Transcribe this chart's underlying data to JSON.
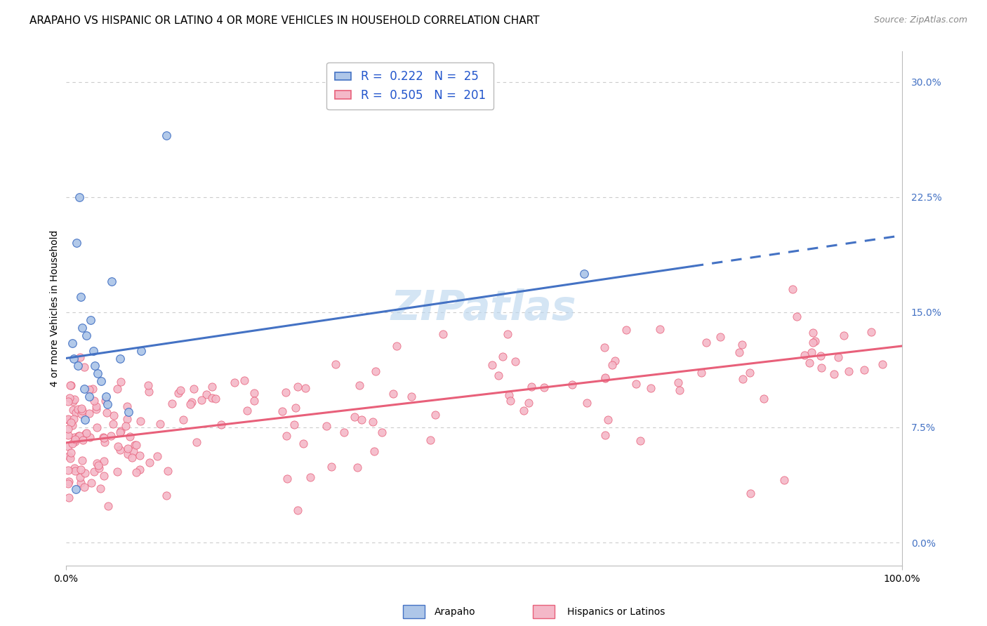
{
  "title": "ARAPAHO VS HISPANIC OR LATINO 4 OR MORE VEHICLES IN HOUSEHOLD CORRELATION CHART",
  "source": "Source: ZipAtlas.com",
  "ylabel": "4 or more Vehicles in Household",
  "xlim": [
    0,
    100
  ],
  "ylim": [
    -1.5,
    32
  ],
  "yticks": [
    0,
    7.5,
    15.0,
    22.5,
    30.0
  ],
  "ytick_labels": [
    "0.0%",
    "7.5%",
    "15.0%",
    "22.5%",
    "30.0%"
  ],
  "xticks": [
    0,
    100
  ],
  "xtick_labels": [
    "0.0%",
    "100.0%"
  ],
  "watermark": "ZIPatlas",
  "legend_entries": [
    {
      "label": "Arapaho",
      "R": "0.222",
      "N": "25",
      "color": "#aec6e8",
      "line_color": "#4472c4"
    },
    {
      "label": "Hispanics or Latinos",
      "R": "0.505",
      "N": "201",
      "color": "#f4b8c8",
      "line_color": "#e8607a"
    }
  ],
  "blue_scatter_x": [
    0.8,
    1.0,
    1.3,
    1.5,
    1.8,
    2.0,
    2.2,
    2.5,
    2.8,
    3.0,
    3.3,
    3.8,
    4.2,
    5.0,
    5.5,
    6.5,
    7.5,
    9.0,
    12.0,
    62.0,
    1.6,
    2.3,
    3.5,
    4.8,
    1.2
  ],
  "blue_scatter_y": [
    13.0,
    12.0,
    19.5,
    11.5,
    16.0,
    14.0,
    10.0,
    13.5,
    9.5,
    14.5,
    12.5,
    11.0,
    10.5,
    9.0,
    17.0,
    12.0,
    8.5,
    12.5,
    26.5,
    17.5,
    22.5,
    8.0,
    11.5,
    9.5,
    3.5
  ],
  "pink_line_x0": 0,
  "pink_line_x1": 100,
  "pink_line_y0": 6.5,
  "pink_line_y1": 12.8,
  "blue_line_x0": 0,
  "blue_line_x1": 100,
  "blue_line_y0": 12.0,
  "blue_line_y1": 20.0,
  "blue_solid_end": 75,
  "bg_color": "#ffffff",
  "grid_color": "#cccccc",
  "title_fontsize": 11,
  "axis_label_fontsize": 10,
  "tick_fontsize": 10,
  "watermark_color": "#b8d4ee",
  "watermark_fontsize": 42,
  "legend_R_N_color": "#2255cc",
  "legend_fontsize": 12,
  "source_text": "Source: ZipAtlas.com"
}
